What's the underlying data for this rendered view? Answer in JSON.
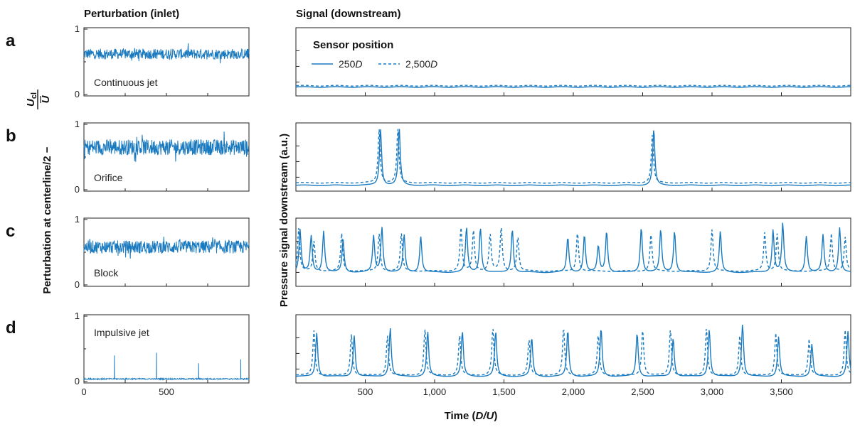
{
  "colors": {
    "series": "#1a7ac0",
    "axis": "#222222"
  },
  "chart_data": [
    {
      "type": "line",
      "title": "Perturbation (inlet)",
      "ylabel": "Perturbation at centerline/2 −",
      "ylabel_num": "U",
      "ylabel_num_sub": "cl",
      "ylabel_den": "U",
      "xlim": [
        0,
        1000
      ],
      "ylim": [
        0,
        1
      ],
      "xticks": [
        0,
        500
      ],
      "yticks": [
        0,
        1
      ],
      "panels": [
        {
          "letter": "a",
          "annotation": "Continuous jet",
          "mean": 0.62,
          "amplitude": 0.08,
          "kind": "noise"
        },
        {
          "letter": "b",
          "annotation": "Orifice",
          "mean": 0.65,
          "amplitude": 0.12,
          "kind": "noise"
        },
        {
          "letter": "c",
          "annotation": "Block",
          "mean": 0.58,
          "amplitude": 0.1,
          "kind": "noise"
        },
        {
          "letter": "d",
          "annotation": "Impulsive jet",
          "mean": 0.04,
          "amplitude": 0.01,
          "kind": "impulses",
          "spikes": [
            {
              "x": 185,
              "y": 0.4
            },
            {
              "x": 440,
              "y": 0.44
            },
            {
              "x": 695,
              "y": 0.28
            },
            {
              "x": 950,
              "y": 0.34
            }
          ]
        }
      ]
    },
    {
      "type": "line",
      "title": "Signal (downstream)",
      "ylabel": "Pressure signal downstream (a.u.)",
      "xlabel": "Time (",
      "xlabel_italic": "D/U",
      "xlabel_end": ")",
      "xlim": [
        0,
        4000
      ],
      "xticks": [
        500,
        1000,
        1500,
        2000,
        2500,
        3000,
        3500
      ],
      "xtick_labels": [
        "500",
        "1,000",
        "1,500",
        "2,000",
        "2,500",
        "3,000",
        "3,500"
      ],
      "legend": {
        "title": "Sensor position",
        "placement": "top-left",
        "entries": [
          {
            "label": "250",
            "label_italic": "D",
            "style": "solid"
          },
          {
            "label": "2,500",
            "label_italic": "D",
            "style": "dashed"
          }
        ]
      },
      "panels": [
        {
          "letter": "a",
          "baseline": 0.12,
          "spikes_solid": [],
          "spikes_dashed": []
        },
        {
          "letter": "b",
          "baseline": 0.07,
          "baseline_dashed": 0.11,
          "spikes_solid": [
            {
              "x": 610,
              "h": 0.97
            },
            {
              "x": 745,
              "h": 0.97
            },
            {
              "x": 2580,
              "h": 0.98
            }
          ],
          "spikes_dashed": [
            {
              "x": 600,
              "h": 0.97
            },
            {
              "x": 735,
              "h": 0.97
            },
            {
              "x": 2570,
              "h": 0.9
            }
          ]
        },
        {
          "letter": "c",
          "baseline": 0.2,
          "spikes_solid": [
            {
              "x": 30,
              "h": 0.88
            },
            {
              "x": 110,
              "h": 0.78
            },
            {
              "x": 200,
              "h": 0.86
            },
            {
              "x": 340,
              "h": 0.72
            },
            {
              "x": 560,
              "h": 0.78
            },
            {
              "x": 620,
              "h": 0.92
            },
            {
              "x": 780,
              "h": 0.8
            },
            {
              "x": 900,
              "h": 0.78
            },
            {
              "x": 1230,
              "h": 0.92
            },
            {
              "x": 1330,
              "h": 0.92
            },
            {
              "x": 1560,
              "h": 0.9
            },
            {
              "x": 1960,
              "h": 0.76
            },
            {
              "x": 2080,
              "h": 0.8
            },
            {
              "x": 2180,
              "h": 0.62
            },
            {
              "x": 2240,
              "h": 0.86
            },
            {
              "x": 2490,
              "h": 0.92
            },
            {
              "x": 2630,
              "h": 0.88
            },
            {
              "x": 2730,
              "h": 0.86
            },
            {
              "x": 3060,
              "h": 0.86
            },
            {
              "x": 3440,
              "h": 0.88
            },
            {
              "x": 3510,
              "h": 0.98
            },
            {
              "x": 3680,
              "h": 0.78
            },
            {
              "x": 3800,
              "h": 0.8
            },
            {
              "x": 3920,
              "h": 0.92
            }
          ],
          "spikes_dashed": [
            {
              "x": 20,
              "h": 0.9
            },
            {
              "x": 130,
              "h": 0.7
            },
            {
              "x": 330,
              "h": 0.82
            },
            {
              "x": 600,
              "h": 0.82
            },
            {
              "x": 760,
              "h": 0.82
            },
            {
              "x": 1190,
              "h": 0.92
            },
            {
              "x": 1280,
              "h": 0.88
            },
            {
              "x": 1400,
              "h": 0.82
            },
            {
              "x": 1480,
              "h": 0.92
            },
            {
              "x": 1600,
              "h": 0.78
            },
            {
              "x": 2030,
              "h": 0.86
            },
            {
              "x": 2560,
              "h": 0.82
            },
            {
              "x": 3000,
              "h": 0.9
            },
            {
              "x": 3380,
              "h": 0.84
            },
            {
              "x": 3470,
              "h": 0.82
            },
            {
              "x": 3860,
              "h": 0.82
            },
            {
              "x": 3960,
              "h": 0.76
            }
          ]
        },
        {
          "letter": "d",
          "baseline": 0.08,
          "spikes_solid": [
            {
              "x": 150,
              "h": 0.78
            },
            {
              "x": 420,
              "h": 0.74
            },
            {
              "x": 680,
              "h": 0.86
            },
            {
              "x": 950,
              "h": 0.8
            },
            {
              "x": 1200,
              "h": 0.8
            },
            {
              "x": 1440,
              "h": 0.8
            },
            {
              "x": 1700,
              "h": 0.7
            },
            {
              "x": 1960,
              "h": 0.82
            },
            {
              "x": 2200,
              "h": 0.86
            },
            {
              "x": 2460,
              "h": 0.78
            },
            {
              "x": 2720,
              "h": 0.7
            },
            {
              "x": 2980,
              "h": 0.84
            },
            {
              "x": 3220,
              "h": 0.92
            },
            {
              "x": 3480,
              "h": 0.72
            },
            {
              "x": 3720,
              "h": 0.6
            },
            {
              "x": 3980,
              "h": 0.8
            }
          ],
          "spikes_dashed": [
            {
              "x": 130,
              "h": 0.82
            },
            {
              "x": 400,
              "h": 0.76
            },
            {
              "x": 660,
              "h": 0.74
            },
            {
              "x": 930,
              "h": 0.84
            },
            {
              "x": 1180,
              "h": 0.74
            },
            {
              "x": 1420,
              "h": 0.86
            },
            {
              "x": 1680,
              "h": 0.68
            },
            {
              "x": 1930,
              "h": 0.86
            },
            {
              "x": 2180,
              "h": 0.76
            },
            {
              "x": 2500,
              "h": 0.84
            },
            {
              "x": 2700,
              "h": 0.84
            },
            {
              "x": 2960,
              "h": 0.86
            },
            {
              "x": 3200,
              "h": 0.74
            },
            {
              "x": 3460,
              "h": 0.78
            },
            {
              "x": 3700,
              "h": 0.68
            },
            {
              "x": 3960,
              "h": 0.82
            }
          ]
        }
      ]
    }
  ]
}
